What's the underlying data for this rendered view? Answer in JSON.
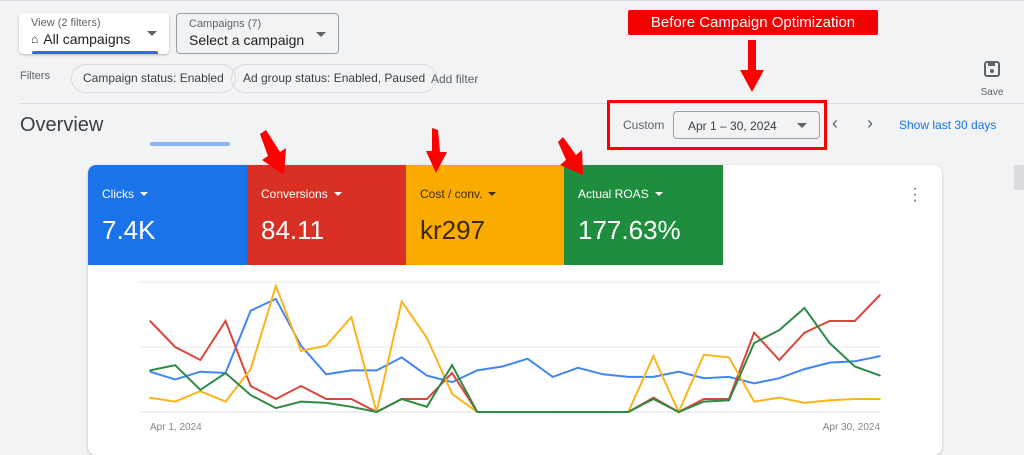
{
  "view_selector": {
    "label": "View (2 filters)",
    "value": "All campaigns"
  },
  "campaign_selector": {
    "label": "Campaigns (7)",
    "value": "Select a campaign"
  },
  "filters": {
    "label": "Filters",
    "chips": [
      "Campaign status: Enabled",
      "Ad group status: Enabled, Paused"
    ],
    "add_filter": "Add filter"
  },
  "save": {
    "label": "Save"
  },
  "overview": {
    "title": "Overview"
  },
  "date": {
    "preset": "Custom",
    "range": "Apr 1 – 30, 2024",
    "show_last": "Show last 30 days"
  },
  "annotation": {
    "text": "Before Campaign Optimization"
  },
  "metrics": [
    {
      "label": "Clicks",
      "value": "7.4K",
      "color": "#1a73e8"
    },
    {
      "label": "Conversions",
      "value": "84.11",
      "color": "#d93025"
    },
    {
      "label": "Cost / conv.",
      "value": "kr297",
      "color": "#f9ab00"
    },
    {
      "label": "Actual ROAS",
      "value": "177.63%",
      "color": "#1e8e3e"
    }
  ],
  "chart_data": {
    "type": "line",
    "x_start_label": "Apr 1, 2024",
    "x_end_label": "Apr 30, 2024",
    "ylim": [
      0,
      100
    ],
    "grid": true,
    "series": [
      {
        "name": "Clicks",
        "color": "#4285f4",
        "values": [
          31,
          25,
          31,
          30,
          78,
          87,
          51,
          29,
          32,
          32,
          42,
          28,
          23,
          32,
          35,
          41,
          27,
          34,
          29,
          27,
          27,
          31,
          26,
          27,
          22,
          26,
          33,
          38,
          39,
          43
        ]
      },
      {
        "name": "Conversions",
        "color": "#d9473b",
        "values": [
          70,
          50,
          40,
          70,
          20,
          10,
          20,
          10,
          10,
          0,
          10,
          10,
          30,
          0,
          0,
          0,
          0,
          0,
          0,
          0,
          11,
          0,
          10,
          10,
          61,
          40,
          61,
          70,
          70,
          90
        ]
      },
      {
        "name": "Cost / conv.",
        "color": "#fbb41c",
        "values": [
          11,
          8,
          16,
          8,
          33,
          97,
          47,
          51,
          73,
          0,
          85,
          57,
          14,
          0,
          0,
          0,
          0,
          0,
          0,
          0,
          43,
          0,
          44,
          42,
          8,
          11,
          7,
          9,
          10,
          10
        ]
      },
      {
        "name": "Actual ROAS",
        "color": "#2e8b45",
        "values": [
          32,
          36,
          17,
          30,
          13,
          3,
          8,
          7,
          4,
          0,
          10,
          4,
          36,
          0,
          0,
          0,
          0,
          0,
          0,
          0,
          10,
          0,
          8,
          9,
          53,
          63,
          80,
          53,
          35,
          28
        ]
      }
    ]
  }
}
